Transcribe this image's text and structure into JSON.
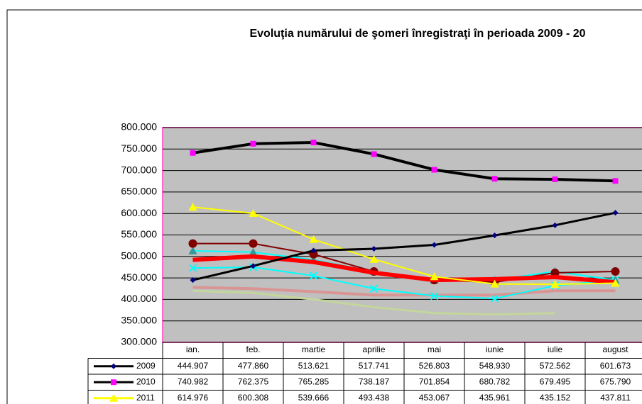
{
  "chart_data": {
    "type": "line",
    "title": "Evoluţia numărului de şomeri înregistraţi în perioada 2009 - 20",
    "categories": [
      "ian.",
      "feb.",
      "martie",
      "aprilie",
      "mai",
      "iunie",
      "iulie",
      "august"
    ],
    "ylim": [
      300000,
      800000
    ],
    "yticks": [
      {
        "value": 300000,
        "label": "300.000"
      },
      {
        "value": 350000,
        "label": "350.000"
      },
      {
        "value": 400000,
        "label": "400.000"
      },
      {
        "value": 450000,
        "label": "450.000"
      },
      {
        "value": 500000,
        "label": "500.000"
      },
      {
        "value": 550000,
        "label": "550.000"
      },
      {
        "value": 600000,
        "label": "600.000"
      },
      {
        "value": 650000,
        "label": "650.000"
      },
      {
        "value": 700000,
        "label": "700.000"
      },
      {
        "value": 750000,
        "label": "750.000"
      },
      {
        "value": 800000,
        "label": "800.000"
      }
    ],
    "grid": true,
    "series": [
      {
        "name": "2009",
        "color": "#000000",
        "marker_color": "#000080",
        "marker": "diamond",
        "values": [
          444907,
          477860,
          513621,
          517741,
          526803,
          548930,
          572562,
          601673
        ],
        "value_labels": [
          "444.907",
          "477.860",
          "513.621",
          "517.741",
          "526.803",
          "548.930",
          "572.562",
          "601.673"
        ]
      },
      {
        "name": "2010",
        "color": "#000000",
        "marker_color": "#ff00ff",
        "marker": "square",
        "values": [
          740982,
          762375,
          765285,
          738187,
          701854,
          680782,
          679495,
          675790
        ],
        "value_labels": [
          "740.982",
          "762.375",
          "765.285",
          "738.187",
          "701.854",
          "680.782",
          "679.495",
          "675.790"
        ]
      },
      {
        "name": "2011",
        "color": "#ffff00",
        "marker_color": "#ffff00",
        "marker": "triangle",
        "values": [
          614976,
          600308,
          539666,
          493438,
          453067,
          435961,
          435152,
          437811
        ],
        "value_labels": [
          "614.976",
          "600.308",
          "539.666",
          "493.438",
          "453.067",
          "435.961",
          "435.152",
          "437.811"
        ]
      },
      {
        "color": "#800000",
        "marker_color": "#800000",
        "marker": "circle",
        "values": [
          530000,
          530000,
          505000,
          465000,
          445000,
          440000,
          462000,
          465000
        ]
      },
      {
        "color": "#00ffff",
        "marker_color": "#339999",
        "marker": "triangle",
        "values": [
          513000,
          510000,
          492000,
          465000,
          445000,
          445000,
          465000,
          445000
        ]
      },
      {
        "color": "#00ffff",
        "marker_color": "#00ffff",
        "marker": "x",
        "values": [
          473000,
          475000,
          455000,
          425000,
          408000,
          402000,
          432000,
          445000
        ]
      },
      {
        "color": "#ff0000",
        "marker_color": "#ff0000",
        "marker": "none",
        "values": [
          492000,
          500000,
          487000,
          462000,
          445000,
          447000,
          452000,
          440000
        ]
      },
      {
        "color": "#d99594",
        "marker_color": "#d99594",
        "marker": "none",
        "values": [
          428000,
          425000,
          418000,
          410000,
          410000,
          410000,
          420000,
          420000
        ]
      },
      {
        "color": "#c3d69b",
        "marker_color": "#c3d69b",
        "marker": "none",
        "values": [
          420000,
          415000,
          400000,
          382000,
          368000,
          365000,
          368000,
          null
        ]
      }
    ]
  }
}
